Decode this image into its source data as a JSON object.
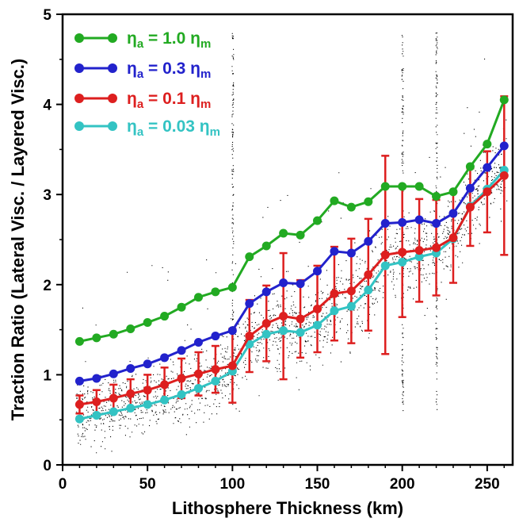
{
  "chart_data": {
    "type": "line",
    "xlabel": "Lithosphere Thickness (km)",
    "ylabel": "Traction Ratio (Lateral Visc. / Layered Visc.)",
    "xlim": [
      0,
      265
    ],
    "ylim": [
      0,
      5
    ],
    "x_ticks": [
      0,
      50,
      100,
      150,
      200,
      250
    ],
    "y_ticks": [
      0,
      1,
      2,
      3,
      4,
      5
    ],
    "grid": false,
    "legend_position": "top-left",
    "x": [
      10,
      20,
      30,
      40,
      50,
      60,
      70,
      80,
      90,
      100,
      110,
      120,
      130,
      140,
      150,
      160,
      170,
      180,
      190,
      200,
      210,
      220,
      230,
      240,
      250,
      260
    ],
    "series": [
      {
        "name": "η_a = 1.0 η_m",
        "color": "#22aa22",
        "values": [
          1.37,
          1.41,
          1.45,
          1.51,
          1.58,
          1.65,
          1.75,
          1.86,
          1.92,
          1.97,
          2.31,
          2.43,
          2.57,
          2.55,
          2.71,
          2.93,
          2.86,
          2.92,
          3.09,
          3.09,
          3.09,
          2.98,
          3.03,
          3.31,
          3.56,
          4.05
        ]
      },
      {
        "name": "η_a = 0.3 η_m",
        "color": "#2222cc",
        "values": [
          0.93,
          0.96,
          1.01,
          1.07,
          1.12,
          1.19,
          1.27,
          1.36,
          1.43,
          1.49,
          1.79,
          1.92,
          2.02,
          2.01,
          2.15,
          2.37,
          2.35,
          2.48,
          2.68,
          2.69,
          2.72,
          2.68,
          2.79,
          3.07,
          3.3,
          3.54
        ]
      },
      {
        "name": "η_a = 0.1 η_m",
        "color": "#dd1f1f",
        "values": [
          0.67,
          0.7,
          0.74,
          0.79,
          0.83,
          0.89,
          0.96,
          1.01,
          1.06,
          1.1,
          1.43,
          1.57,
          1.65,
          1.62,
          1.73,
          1.9,
          1.93,
          2.11,
          2.33,
          2.36,
          2.38,
          2.41,
          2.52,
          2.86,
          3.03,
          3.21
        ],
        "error": [
          0.1,
          0.13,
          0.15,
          0.16,
          0.17,
          0.19,
          0.22,
          0.24,
          0.26,
          0.41,
          0.4,
          0.42,
          0.7,
          0.43,
          0.48,
          0.52,
          0.58,
          0.62,
          1.1,
          0.72,
          0.57,
          0.53,
          0.5,
          0.43,
          0.45,
          0.88
        ]
      },
      {
        "name": "η_a = 0.03 η_m",
        "color": "#33c3c3",
        "values": [
          0.51,
          0.55,
          0.59,
          0.63,
          0.67,
          0.72,
          0.78,
          0.85,
          0.93,
          1.04,
          1.34,
          1.45,
          1.49,
          1.47,
          1.55,
          1.71,
          1.76,
          1.94,
          2.21,
          2.25,
          2.31,
          2.35,
          2.51,
          2.87,
          3.06,
          3.27
        ]
      }
    ],
    "scatter_background": {
      "color": "#000000",
      "note_dense_region": "individual data points scattered around the curves"
    }
  },
  "legend": {
    "items": [
      {
        "eta": "η",
        "sub_a": "a",
        "text": " = 1.0 ",
        "sub_m": "m",
        "color": "#22aa22"
      },
      {
        "eta": "η",
        "sub_a": "a",
        "text": " = 0.3 ",
        "sub_m": "m",
        "color": "#2222cc"
      },
      {
        "eta": "η",
        "sub_a": "a",
        "text": " = 0.1 ",
        "sub_m": "m",
        "color": "#dd1f1f"
      },
      {
        "eta": "η",
        "sub_a": "a",
        "text": " = 0.03 ",
        "sub_m": "m",
        "color": "#33c3c3"
      }
    ]
  }
}
